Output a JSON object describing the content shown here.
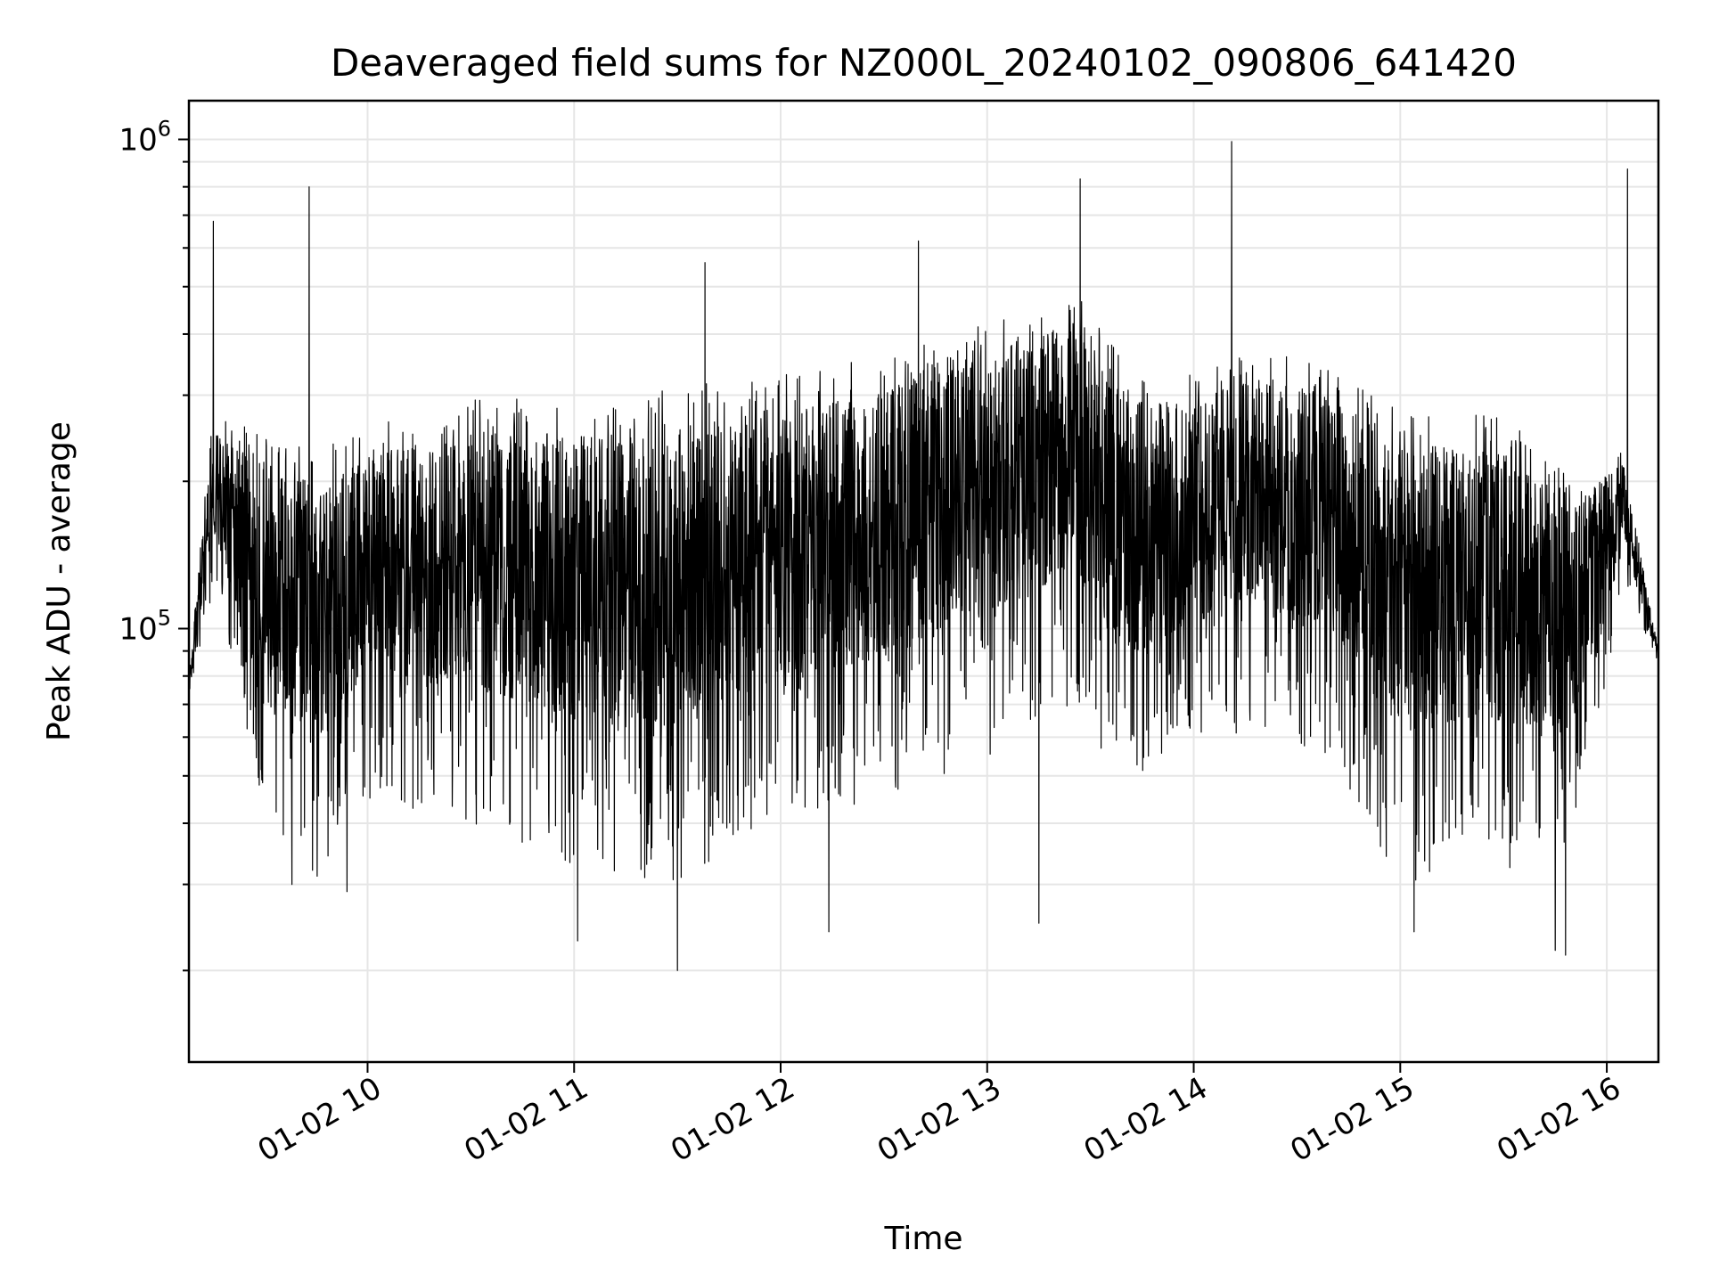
{
  "chart_data": {
    "type": "line",
    "title": "Deaveraged field sums for NZ000L_20240102_090806_641420",
    "xlabel": "Time",
    "ylabel": "Peak ADU - average",
    "yscale": "log",
    "grid": true,
    "legend": "none",
    "x_range": [
      "2024-01-02T09:08:06",
      "2024-01-02T16:15:00"
    ],
    "ylim": [
      13000,
      1200000
    ],
    "series_color": "#000000",
    "x_ticks": [
      {
        "value": "2024-01-02T10:00:00",
        "label": "01-02 10"
      },
      {
        "value": "2024-01-02T11:00:00",
        "label": "01-02 11"
      },
      {
        "value": "2024-01-02T12:00:00",
        "label": "01-02 12"
      },
      {
        "value": "2024-01-02T13:00:00",
        "label": "01-02 13"
      },
      {
        "value": "2024-01-02T14:00:00",
        "label": "01-02 14"
      },
      {
        "value": "2024-01-02T15:00:00",
        "label": "01-02 15"
      },
      {
        "value": "2024-01-02T16:00:00",
        "label": "01-02 16"
      }
    ],
    "y_ticks": [
      {
        "value": 100000,
        "base": "10",
        "exp": "5"
      },
      {
        "value": 1000000,
        "base": "10",
        "exp": "6"
      }
    ],
    "series": [
      {
        "envelope": [
          {
            "t": "2024-01-02T09:08:06",
            "upper": 80000,
            "lower": 70000
          },
          {
            "t": "2024-01-02T09:15:00",
            "upper": 280000,
            "lower": 120000
          },
          {
            "t": "2024-01-02T09:30:00",
            "upper": 250000,
            "lower": 40000
          },
          {
            "t": "2024-01-02T09:45:00",
            "upper": 230000,
            "lower": 28000
          },
          {
            "t": "2024-01-02T10:00:00",
            "upper": 260000,
            "lower": 45000
          },
          {
            "t": "2024-01-02T10:30:00",
            "upper": 300000,
            "lower": 40000
          },
          {
            "t": "2024-01-02T11:00:00",
            "upper": 290000,
            "lower": 32000
          },
          {
            "t": "2024-01-02T11:30:00",
            "upper": 320000,
            "lower": 30000
          },
          {
            "t": "2024-01-02T12:00:00",
            "upper": 330000,
            "lower": 40000
          },
          {
            "t": "2024-01-02T12:30:00",
            "upper": 360000,
            "lower": 45000
          },
          {
            "t": "2024-01-02T12:50:00",
            "upper": 420000,
            "lower": 50000
          },
          {
            "t": "2024-01-02T13:10:00",
            "upper": 450000,
            "lower": 60000
          },
          {
            "t": "2024-01-02T13:25:00",
            "upper": 500000,
            "lower": 70000
          },
          {
            "t": "2024-01-02T13:40:00",
            "upper": 350000,
            "lower": 45000
          },
          {
            "t": "2024-01-02T14:00:00",
            "upper": 330000,
            "lower": 60000
          },
          {
            "t": "2024-01-02T14:20:00",
            "upper": 380000,
            "lower": 60000
          },
          {
            "t": "2024-01-02T14:40:00",
            "upper": 340000,
            "lower": 55000
          },
          {
            "t": "2024-01-02T15:00:00",
            "upper": 290000,
            "lower": 30000
          },
          {
            "t": "2024-01-02T15:30:00",
            "upper": 270000,
            "lower": 32000
          },
          {
            "t": "2024-01-02T15:50:00",
            "upper": 210000,
            "lower": 35000
          },
          {
            "t": "2024-01-02T16:05:00",
            "upper": 230000,
            "lower": 120000
          },
          {
            "t": "2024-01-02T16:15:00",
            "upper": 90000,
            "lower": 85000
          }
        ],
        "peaks": [
          {
            "t": "2024-01-02T09:15:10",
            "value": 680000
          },
          {
            "t": "2024-01-02T09:43:00",
            "value": 800000
          },
          {
            "t": "2024-01-02T11:38:00",
            "value": 560000
          },
          {
            "t": "2024-01-02T12:40:00",
            "value": 620000
          },
          {
            "t": "2024-01-02T13:27:00",
            "value": 830000
          },
          {
            "t": "2024-01-02T14:11:00",
            "value": 990000
          },
          {
            "t": "2024-01-02T16:06:00",
            "value": 870000
          }
        ],
        "dips": [
          {
            "t": "2024-01-02T09:38:00",
            "value": 30000
          },
          {
            "t": "2024-01-02T09:54:00",
            "value": 29000
          },
          {
            "t": "2024-01-02T11:01:00",
            "value": 23000
          },
          {
            "t": "2024-01-02T11:30:00",
            "value": 20000
          },
          {
            "t": "2024-01-02T12:14:00",
            "value": 24000
          },
          {
            "t": "2024-01-02T13:15:00",
            "value": 25000
          },
          {
            "t": "2024-01-02T15:04:00",
            "value": 24000
          },
          {
            "t": "2024-01-02T15:45:00",
            "value": 22000
          },
          {
            "t": "2024-01-02T15:48:00",
            "value": 21500
          }
        ]
      }
    ]
  }
}
